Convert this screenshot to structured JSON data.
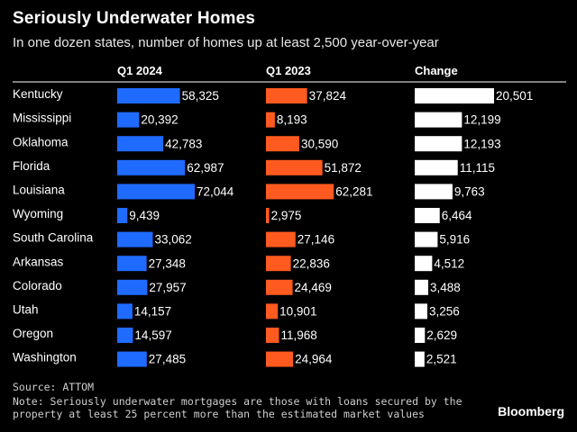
{
  "title": "Seriously Underwater Homes",
  "subtitle": "In one dozen states, number of homes up at least 2,500 year-over-year",
  "source": "Source: ATTOM",
  "note": "Note: Seriously underwater mortgages are those with loans secured by the property at least 25 percent more than the estimated market values",
  "brand": "Bloomberg",
  "colors": {
    "q1_2024": "#1f6bff",
    "q1_2023": "#ff5a1f",
    "change": "#ffffff"
  },
  "chart_data": {
    "type": "bar",
    "title": "Seriously Underwater Homes",
    "categories": [
      "Kentucky",
      "Mississippi",
      "Oklahoma",
      "Florida",
      "Louisiana",
      "Wyoming",
      "South Carolina",
      "Arkansas",
      "Colorado",
      "Utah",
      "Oregon",
      "Washington"
    ],
    "series": [
      {
        "name": "Q1 2024",
        "values": [
          58325,
          20392,
          42783,
          62987,
          72044,
          9439,
          33062,
          27348,
          27957,
          14157,
          14597,
          27485
        ],
        "labels": [
          "58,325",
          "20,392",
          "42,783",
          "62,987",
          "72,044",
          "9,439",
          "33,062",
          "27,348",
          "27,957",
          "14,157",
          "14,597",
          "27,485"
        ]
      },
      {
        "name": "Q1 2023",
        "values": [
          37824,
          8193,
          30590,
          51872,
          62281,
          2975,
          27146,
          22836,
          24469,
          10901,
          11968,
          24964
        ],
        "labels": [
          "37,824",
          "8,193",
          "30,590",
          "51,872",
          "62,281",
          "2,975",
          "27,146",
          "22,836",
          "24,469",
          "10,901",
          "11,968",
          "24,964"
        ]
      },
      {
        "name": "Change",
        "values": [
          20501,
          12199,
          12193,
          11115,
          9763,
          6464,
          5916,
          4512,
          3488,
          3256,
          2629,
          2521
        ],
        "labels": [
          "20,501",
          "12,199",
          "12,193",
          "11,115",
          "9,763",
          "6,464",
          "5,916",
          "4,512",
          "3,488",
          "3,256",
          "2,629",
          "2,521"
        ]
      }
    ],
    "xlim": [
      0,
      72044
    ],
    "change_xlim": [
      0,
      20501
    ],
    "grid": false,
    "legend": "none"
  }
}
